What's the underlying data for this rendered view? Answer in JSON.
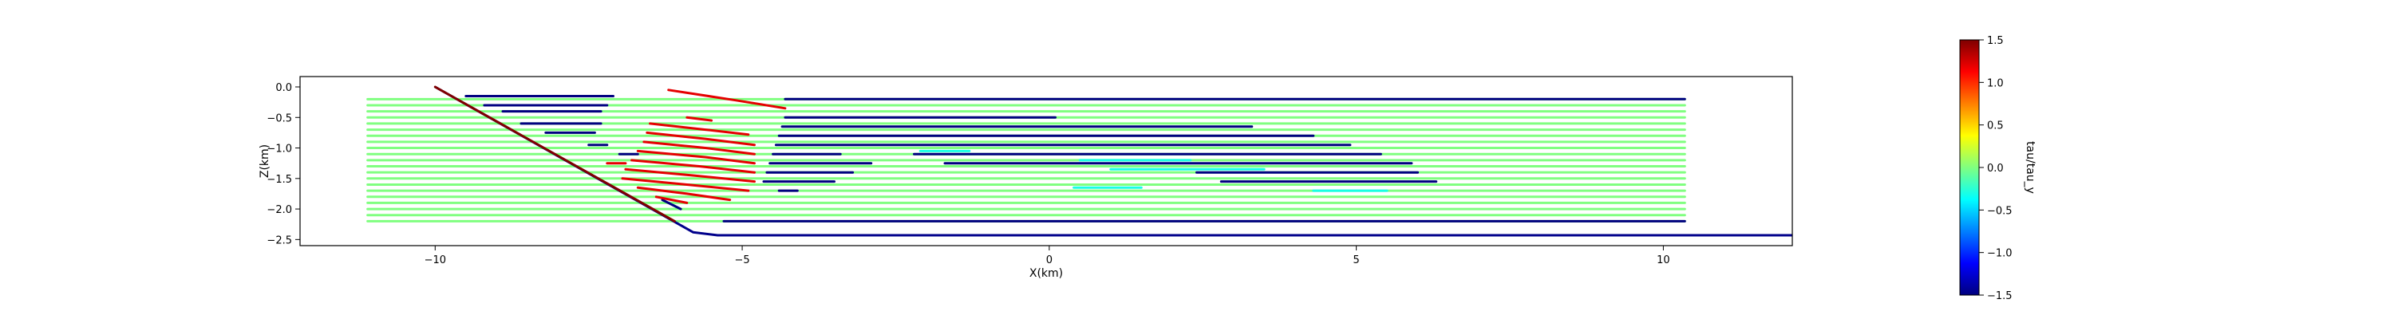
{
  "chart_data": [
    {
      "type": "line",
      "title": "",
      "xlabel": "X(km)",
      "ylabel": "Z(km)",
      "xlim": [
        -12.2,
        12.1
      ],
      "ylim": [
        -2.6,
        0.17
      ],
      "x_ticks": [
        -10,
        -5,
        0,
        5,
        10
      ],
      "x_tick_labels": [
        "−10",
        "−5",
        "0",
        "5",
        "10"
      ],
      "y_ticks": [
        0.0,
        -0.5,
        -1.0,
        -1.5,
        -2.0,
        -2.5
      ],
      "y_tick_labels": [
        "0.0",
        "−0.5",
        "−1.0",
        "−1.5",
        "−2.0",
        "−2.5"
      ],
      "grid": false,
      "legend": "none",
      "colormap": "jet",
      "boundary": {
        "name": "",
        "color": "#00008b",
        "points": [
          [
            -10.0,
            0.0
          ],
          [
            -5.8,
            -2.38
          ],
          [
            -5.4,
            -2.43
          ],
          [
            12.1,
            -2.43
          ]
        ]
      },
      "fault": {
        "name": "",
        "color": "#800000",
        "points": [
          [
            -10.0,
            0.0
          ],
          [
            -6.1,
            -2.2
          ]
        ]
      },
      "layer_lines": {
        "name": "",
        "x_start": -11.1,
        "x_end": 10.35,
        "z_values": [
          -0.2,
          -0.3,
          -0.4,
          -0.5,
          -0.6,
          -0.7,
          -0.8,
          -0.9,
          -1.0,
          -1.1,
          -1.2,
          -1.3,
          -1.4,
          -1.5,
          -1.6,
          -1.7,
          -1.8,
          -1.9,
          -2.0,
          -2.1,
          -2.2
        ],
        "base_color": "#80ff80"
      },
      "stress_segments": [
        {
          "value": -1.5,
          "points": [
            [
              -9.5,
              -0.15
            ],
            [
              -7.1,
              -0.15
            ]
          ]
        },
        {
          "value": -1.5,
          "points": [
            [
              -9.2,
              -0.3
            ],
            [
              -7.2,
              -0.3
            ]
          ]
        },
        {
          "value": -1.5,
          "points": [
            [
              -8.9,
              -0.4
            ],
            [
              -7.3,
              -0.4
            ]
          ]
        },
        {
          "value": -1.5,
          "points": [
            [
              -8.6,
              -0.6
            ],
            [
              -7.3,
              -0.6
            ]
          ]
        },
        {
          "value": -1.5,
          "points": [
            [
              -8.2,
              -0.75
            ],
            [
              -7.4,
              -0.75
            ]
          ]
        },
        {
          "value": -1.5,
          "points": [
            [
              -7.5,
              -0.95
            ],
            [
              -7.2,
              -0.95
            ]
          ]
        },
        {
          "value": -1.5,
          "points": [
            [
              -7.0,
              -1.1
            ],
            [
              -6.7,
              -1.1
            ]
          ]
        },
        {
          "value": -1.5,
          "points": [
            [
              -6.3,
              -1.85
            ],
            [
              -6.0,
              -2.0
            ]
          ]
        },
        {
          "value": -1.5,
          "points": [
            [
              -4.3,
              -0.2
            ],
            [
              10.35,
              -0.2
            ]
          ]
        },
        {
          "value": -1.5,
          "points": [
            [
              -4.3,
              -0.5
            ],
            [
              0.1,
              -0.5
            ]
          ]
        },
        {
          "value": -1.5,
          "points": [
            [
              -4.35,
              -0.65
            ],
            [
              3.3,
              -0.65
            ]
          ]
        },
        {
          "value": -1.5,
          "points": [
            [
              -4.4,
              -0.8
            ],
            [
              4.3,
              -0.8
            ]
          ]
        },
        {
          "value": -1.5,
          "points": [
            [
              -4.45,
              -0.95
            ],
            [
              4.9,
              -0.95
            ]
          ]
        },
        {
          "value": -1.5,
          "points": [
            [
              -4.5,
              -1.1
            ],
            [
              -3.4,
              -1.1
            ]
          ]
        },
        {
          "value": -1.5,
          "points": [
            [
              -2.2,
              -1.1
            ],
            [
              5.4,
              -1.1
            ]
          ]
        },
        {
          "value": -1.5,
          "points": [
            [
              -4.55,
              -1.25
            ],
            [
              -2.9,
              -1.25
            ]
          ]
        },
        {
          "value": -1.5,
          "points": [
            [
              -1.7,
              -1.25
            ],
            [
              5.9,
              -1.25
            ]
          ]
        },
        {
          "value": -1.5,
          "points": [
            [
              -4.6,
              -1.4
            ],
            [
              -3.2,
              -1.4
            ]
          ]
        },
        {
          "value": -1.5,
          "points": [
            [
              2.4,
              -1.4
            ],
            [
              6.0,
              -1.4
            ]
          ]
        },
        {
          "value": -1.5,
          "points": [
            [
              -4.65,
              -1.55
            ],
            [
              -3.5,
              -1.55
            ]
          ]
        },
        {
          "value": -1.5,
          "points": [
            [
              2.8,
              -1.55
            ],
            [
              6.3,
              -1.55
            ]
          ]
        },
        {
          "value": -1.5,
          "points": [
            [
              -4.4,
              -1.7
            ],
            [
              -4.1,
              -1.7
            ]
          ]
        },
        {
          "value": -1.5,
          "points": [
            [
              -5.3,
              -2.2
            ],
            [
              10.35,
              -2.2
            ]
          ]
        },
        {
          "value": 1.2,
          "points": [
            [
              -6.2,
              -0.05
            ],
            [
              -5.1,
              -0.22
            ],
            [
              -4.3,
              -0.35
            ]
          ]
        },
        {
          "value": 1.2,
          "points": [
            [
              -5.9,
              -0.5
            ],
            [
              -5.5,
              -0.55
            ]
          ]
        },
        {
          "value": 1.2,
          "points": [
            [
              -6.5,
              -0.6
            ],
            [
              -5.6,
              -0.7
            ],
            [
              -4.9,
              -0.78
            ]
          ]
        },
        {
          "value": 1.2,
          "points": [
            [
              -6.55,
              -0.75
            ],
            [
              -5.6,
              -0.85
            ],
            [
              -4.8,
              -0.95
            ]
          ]
        },
        {
          "value": 1.2,
          "points": [
            [
              -6.6,
              -0.9
            ],
            [
              -5.6,
              -1.0
            ],
            [
              -4.8,
              -1.1
            ]
          ]
        },
        {
          "value": 1.2,
          "points": [
            [
              -6.7,
              -1.05
            ],
            [
              -5.6,
              -1.15
            ],
            [
              -4.8,
              -1.25
            ]
          ]
        },
        {
          "value": 1.2,
          "points": [
            [
              -6.8,
              -1.2
            ],
            [
              -5.7,
              -1.3
            ],
            [
              -4.8,
              -1.4
            ]
          ]
        },
        {
          "value": 1.2,
          "points": [
            [
              -6.9,
              -1.35
            ],
            [
              -5.8,
              -1.45
            ],
            [
              -4.8,
              -1.55
            ]
          ]
        },
        {
          "value": 1.2,
          "points": [
            [
              -6.95,
              -1.5
            ],
            [
              -5.9,
              -1.6
            ],
            [
              -4.9,
              -1.7
            ]
          ]
        },
        {
          "value": 1.2,
          "points": [
            [
              -6.7,
              -1.65
            ],
            [
              -5.9,
              -1.75
            ],
            [
              -5.2,
              -1.85
            ]
          ]
        },
        {
          "value": 1.2,
          "points": [
            [
              -6.4,
              -1.8
            ],
            [
              -5.9,
              -1.9
            ]
          ]
        },
        {
          "value": 1.2,
          "points": [
            [
              -7.2,
              -1.25
            ],
            [
              -6.9,
              -1.25
            ]
          ]
        },
        {
          "value": -0.3,
          "points": [
            [
              -2.1,
              -1.05
            ],
            [
              -1.3,
              -1.05
            ]
          ]
        },
        {
          "value": -0.3,
          "points": [
            [
              0.5,
              -1.2
            ],
            [
              2.3,
              -1.2
            ]
          ]
        },
        {
          "value": -0.3,
          "points": [
            [
              1.0,
              -1.35
            ],
            [
              3.5,
              -1.35
            ]
          ]
        },
        {
          "value": -0.3,
          "points": [
            [
              0.4,
              -1.65
            ],
            [
              1.5,
              -1.65
            ]
          ]
        },
        {
          "value": -0.3,
          "points": [
            [
              4.3,
              -1.7
            ],
            [
              5.5,
              -1.7
            ]
          ]
        }
      ],
      "colorbar": {
        "label": "tau/tau_y",
        "ticks": [
          1.5,
          1.0,
          0.5,
          0.0,
          -0.5,
          -1.0,
          -1.5
        ],
        "tick_labels": [
          "1.5",
          "1.0",
          "0.5",
          "0.0",
          "−0.5",
          "−1.0",
          "−1.5"
        ],
        "vmin": -1.5,
        "vmax": 1.5
      }
    }
  ]
}
